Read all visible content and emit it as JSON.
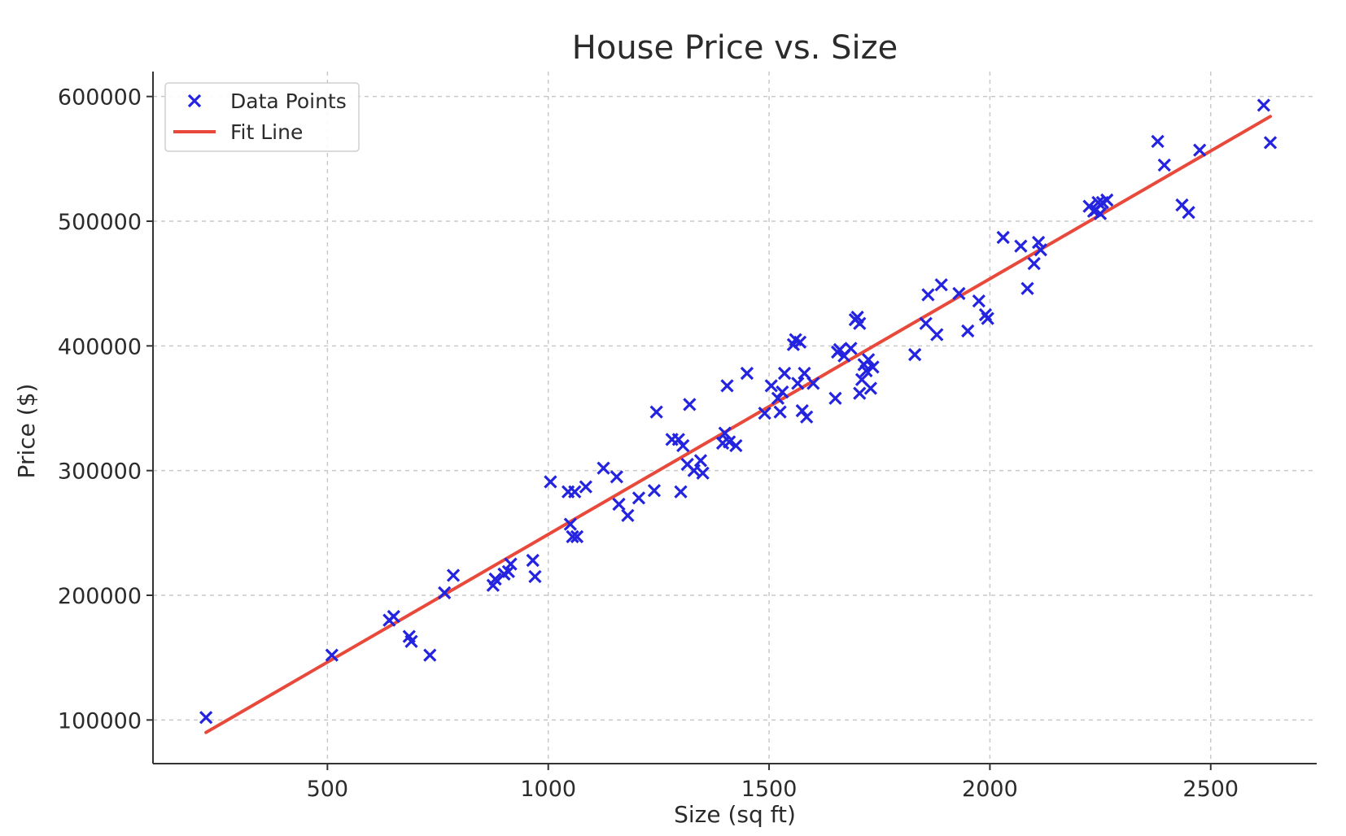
{
  "chart_data": {
    "type": "scatter",
    "title": "House Price vs. Size",
    "xlabel": "Size (sq ft)",
    "ylabel": "Price ($)",
    "xlim": [
      105,
      2740
    ],
    "ylim": [
      65000,
      620000
    ],
    "x_ticks": [
      "500",
      "1000",
      "1500",
      "2000",
      "2500"
    ],
    "y_ticks": [
      "100000",
      "200000",
      "300000",
      "400000",
      "500000",
      "600000"
    ],
    "grid": true,
    "legend_position": "top-left",
    "legend": [
      "Data Points",
      "Fit Line"
    ],
    "colors": {
      "points": "#2323e0",
      "fit_line": "#e8493b"
    },
    "series": [
      {
        "name": "Data Points",
        "kind": "scatter",
        "marker": "x",
        "points": [
          [
            225,
            102000
          ],
          [
            510,
            152000
          ],
          [
            640,
            180000
          ],
          [
            650,
            183000
          ],
          [
            685,
            167000
          ],
          [
            690,
            163000
          ],
          [
            732,
            152000
          ],
          [
            765,
            202000
          ],
          [
            785,
            216000
          ],
          [
            875,
            208000
          ],
          [
            880,
            213000
          ],
          [
            900,
            217000
          ],
          [
            910,
            219000
          ],
          [
            915,
            225000
          ],
          [
            965,
            228000
          ],
          [
            970,
            215000
          ],
          [
            1005,
            291000
          ],
          [
            1045,
            283000
          ],
          [
            1050,
            257000
          ],
          [
            1055,
            247000
          ],
          [
            1065,
            247000
          ],
          [
            1060,
            283000
          ],
          [
            1085,
            287000
          ],
          [
            1125,
            302000
          ],
          [
            1155,
            295000
          ],
          [
            1160,
            273000
          ],
          [
            1180,
            264000
          ],
          [
            1205,
            278000
          ],
          [
            1240,
            284000
          ],
          [
            1245,
            347000
          ],
          [
            1280,
            325000
          ],
          [
            1295,
            325000
          ],
          [
            1300,
            283000
          ],
          [
            1305,
            320000
          ],
          [
            1315,
            305000
          ],
          [
            1320,
            353000
          ],
          [
            1330,
            300000
          ],
          [
            1345,
            308000
          ],
          [
            1350,
            298000
          ],
          [
            1395,
            322000
          ],
          [
            1400,
            330000
          ],
          [
            1405,
            368000
          ],
          [
            1410,
            323000
          ],
          [
            1425,
            320000
          ],
          [
            1450,
            378000
          ],
          [
            1490,
            346000
          ],
          [
            1505,
            368000
          ],
          [
            1520,
            358000
          ],
          [
            1525,
            347000
          ],
          [
            1530,
            363000
          ],
          [
            1535,
            378000
          ],
          [
            1555,
            401000
          ],
          [
            1560,
            405000
          ],
          [
            1565,
            370000
          ],
          [
            1570,
            403000
          ],
          [
            1575,
            348000
          ],
          [
            1580,
            378000
          ],
          [
            1585,
            343000
          ],
          [
            1600,
            370000
          ],
          [
            1650,
            358000
          ],
          [
            1655,
            395000
          ],
          [
            1660,
            397000
          ],
          [
            1670,
            392000
          ],
          [
            1685,
            398000
          ],
          [
            1695,
            421000
          ],
          [
            1700,
            423000
          ],
          [
            1705,
            418000
          ],
          [
            1705,
            362000
          ],
          [
            1710,
            373000
          ],
          [
            1715,
            385000
          ],
          [
            1720,
            380000
          ],
          [
            1725,
            389000
          ],
          [
            1730,
            366000
          ],
          [
            1735,
            383000
          ],
          [
            1830,
            393000
          ],
          [
            1855,
            418000
          ],
          [
            1860,
            441000
          ],
          [
            1880,
            409000
          ],
          [
            1890,
            449000
          ],
          [
            1930,
            442000
          ],
          [
            1950,
            412000
          ],
          [
            1975,
            436000
          ],
          [
            1990,
            425000
          ],
          [
            1995,
            422000
          ],
          [
            2030,
            487000
          ],
          [
            2070,
            480000
          ],
          [
            2085,
            446000
          ],
          [
            2100,
            466000
          ],
          [
            2110,
            483000
          ],
          [
            2115,
            477000
          ],
          [
            2225,
            512000
          ],
          [
            2235,
            508000
          ],
          [
            2240,
            509000
          ],
          [
            2245,
            515000
          ],
          [
            2250,
            506000
          ],
          [
            2255,
            515000
          ],
          [
            2265,
            517000
          ],
          [
            2380,
            564000
          ],
          [
            2395,
            545000
          ],
          [
            2435,
            513000
          ],
          [
            2450,
            507000
          ],
          [
            2475,
            557000
          ],
          [
            2620,
            593000
          ],
          [
            2635,
            563000
          ]
        ]
      },
      {
        "name": "Fit Line",
        "kind": "line",
        "points": [
          [
            225,
            90000
          ],
          [
            2635,
            584000
          ]
        ]
      }
    ]
  }
}
